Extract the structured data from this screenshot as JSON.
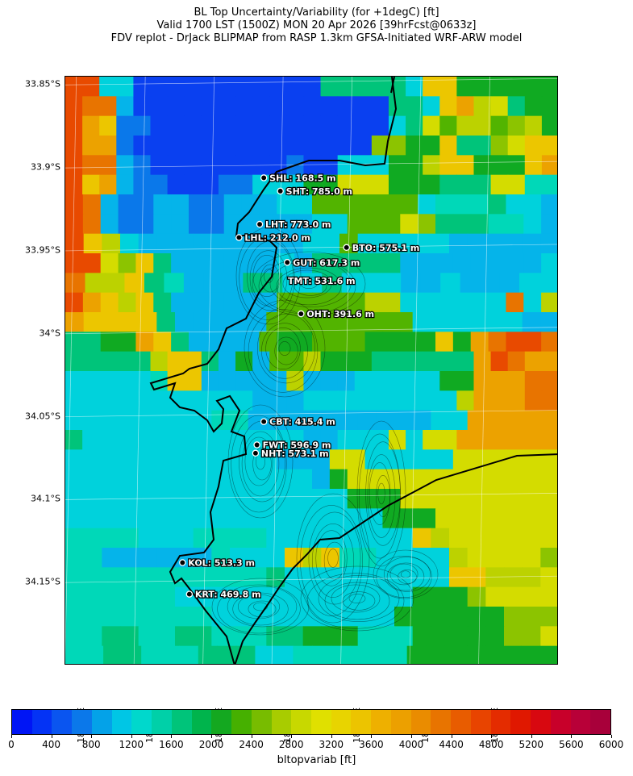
{
  "title": {
    "line1": "BL Top Uncertainty/Variability (for +1degC) [ft]",
    "line2": "Valid 1700 LST (1500Z) MON 20 Apr 2026 [39hrFcst@0633z]",
    "line3": "FDV replot - DrJack BLIPMAP from RASP 1.3km GFSA-Initiated WRF-ARW model"
  },
  "axes": {
    "lat_ticks": [
      {
        "value": -33.85,
        "label": "33.85°S"
      },
      {
        "value": -33.9,
        "label": "33.9°S"
      },
      {
        "value": -33.95,
        "label": "33.95°S"
      },
      {
        "value": -34.0,
        "label": "34°S"
      },
      {
        "value": -34.05,
        "label": "34.05°S"
      },
      {
        "value": -34.1,
        "label": "34.1°S"
      },
      {
        "value": -34.15,
        "label": "34.15°S"
      }
    ],
    "lon_ticks": [
      {
        "value": 18.25,
        "label": "18.25°E"
      },
      {
        "value": 18.3,
        "label": "18.3°E"
      },
      {
        "value": 18.35,
        "label": "18.35°E"
      },
      {
        "value": 18.4,
        "label": "18.4°E"
      },
      {
        "value": 18.45,
        "label": "18.45°E"
      },
      {
        "value": 18.5,
        "label": "18.5°E"
      },
      {
        "value": 18.55,
        "label": "18.55°E"
      }
    ],
    "lat_range": [
      -34.2,
      -33.845
    ],
    "lon_range": [
      18.242,
      18.6
    ]
  },
  "stations": [
    {
      "code": "SHL",
      "label": "SHL: 168.5 m",
      "lat": -33.906,
      "lon": 18.386
    },
    {
      "code": "SHT",
      "label": "SHT: 785.0 m",
      "lat": -33.914,
      "lon": 18.398
    },
    {
      "code": "LHT",
      "label": "LHT: 773.0 m",
      "lat": -33.934,
      "lon": 18.383
    },
    {
      "code": "LHL",
      "label": "LHL: 212.0 m",
      "lat": -33.942,
      "lon": 18.368
    },
    {
      "code": "BTO",
      "label": "BTO: 575.1 m",
      "lat": -33.948,
      "lon": 18.446
    },
    {
      "code": "GUT",
      "label": "GUT: 617.3 m",
      "lat": -33.957,
      "lon": 18.403
    },
    {
      "code": "TMT",
      "label": "TMT: 531.6 m",
      "lat": -33.968,
      "lon": null
    },
    {
      "code": "OHT",
      "label": "OHT: 391.6 m",
      "lat": -33.988,
      "lon": 18.413
    },
    {
      "code": "CBT",
      "label": "CBT: 415.4 m",
      "lat": -34.053,
      "lon": 18.386
    },
    {
      "code": "FWT",
      "label": "FWT: 596.9 m",
      "lat": -34.067,
      "lon": 18.381
    },
    {
      "code": "NHT",
      "label": "NHT: 573.1 m",
      "lat": -34.072,
      "lon": 18.38
    },
    {
      "code": "KOL",
      "label": "KOL: 513.3 m",
      "lat": -34.138,
      "lon": 18.327
    },
    {
      "code": "KRT",
      "label": "KRT: 469.8 m",
      "lat": -34.157,
      "lon": 18.332
    }
  ],
  "colorbar": {
    "label": "bltopvariab [ft]",
    "min": 0,
    "max": 6000,
    "step": 200,
    "tick_labels": [
      "0",
      "400",
      "800",
      "1200",
      "1600",
      "2000",
      "2400",
      "2800",
      "3200",
      "3600",
      "4000",
      "4400",
      "4800",
      "5200",
      "5600",
      "6000"
    ],
    "colors": [
      "#0015f5",
      "#0433f5",
      "#0a55f0",
      "#0b78ea",
      "#04a2e8",
      "#00c6e5",
      "#00d8cc",
      "#00d0a8",
      "#00c47a",
      "#00b44c",
      "#14a820",
      "#46b000",
      "#78bc00",
      "#a8cc00",
      "#c8d800",
      "#e0e000",
      "#e8d400",
      "#ecc400",
      "#eeb000",
      "#eca000",
      "#ea8c00",
      "#e87400",
      "#e85c00",
      "#e84400",
      "#e42c00",
      "#e01800",
      "#d80810",
      "#c8002a",
      "#b80038",
      "#a8003a"
    ]
  },
  "grid_legend": {
    "colors": {
      "0": "#0a40f0",
      "1": "#0a78ea",
      "2": "#05b4ea",
      "3": "#00d2dc",
      "4": "#00d8b8",
      "5": "#00c47a",
      "6": "#10aa22",
      "7": "#52b400",
      "8": "#8cc400",
      "9": "#bcd200",
      "a": "#d4dc00",
      "b": "#ecc600",
      "c": "#eca200",
      "d": "#e87400",
      "e": "#e84a00",
      "f": "#e42800"
    }
  },
  "grid_rows": [
    "ee3300000000000555553bb666666",
    "edd2000000000000000553bc9a566",
    "ecb110000000000000035a7997896",
    "ecc1000000000000008866b558abb",
    "edd2100000000100333669bb666bc",
    "ebc2110001133366aaa666555aa44",
    "ed21122112223377777734445332",
    "ed21122112222233777a85554432",
    "eb9322222222233733333222222",
    "eea8b52222223255555222222223",
    "d99b542225533533322322233",
    "ecb9b52222227777799333333d39",
    "cbbbb5222227777777733333322",
    "5566cb522227667776666b6cdeed",
    "555559bb5262779666555555cedcc",
    "333334bb2222292223333366cccdd",
    "333333333332223333333339cccdd",
    "3333333344222222222233ccccc",
    "5333333333333322333a3aacccccc",
    "333333333333222aa33333aaaaaa",
    "3333333333333326aaaaaaaaaaaa",
    "3333333333333333666aaaaaaaaa",
    "333333333333333333666aaaaaaa",
    "4444333444433333333b9aaaaaa",
    "442222224333b9b4433339aaaa8",
    "444444444445333333333bb999a",
    "44444433333333333336668aaaa",
    "444444443333333333666666888",
    "44554455444556664446666688a",
    "44554445553344444466666666"
  ]
}
